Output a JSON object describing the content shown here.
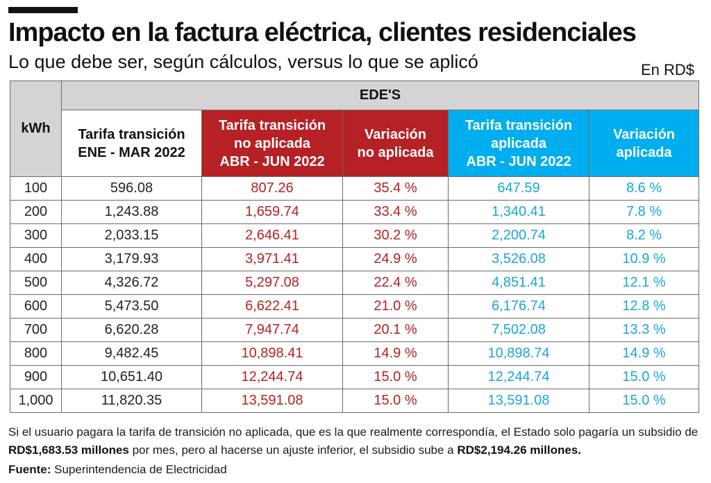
{
  "title": "Impacto en la factura eléctrica, clientes residenciales",
  "subtitle": "Lo que debe ser, según cálculos, versus lo que se aplicó",
  "currency": "En RD$",
  "table": {
    "kwh_header": "kWh",
    "group_header": "EDE'S",
    "columns": [
      [
        "Tarifa transición",
        "ENE - MAR 2022"
      ],
      [
        "Tarifa transición",
        "no aplicada",
        "ABR - JUN 2022"
      ],
      [
        "Variación",
        "no aplicada"
      ],
      [
        "Tarifa transición",
        "aplicada",
        "ABR - JUN 2022"
      ],
      [
        "Variación",
        "aplicada"
      ]
    ],
    "rows": [
      [
        "100",
        "596.08",
        "807.26",
        "35.4 %",
        "647.59",
        "8.6 %"
      ],
      [
        "200",
        "1,243.88",
        "1,659.74",
        "33.4 %",
        "1,340.41",
        "7.8 %"
      ],
      [
        "300",
        "2,033.15",
        "2,646.41",
        "30.2 %",
        "2,200.74",
        "8.2 %"
      ],
      [
        "400",
        "3,179.93",
        "3,971.41",
        "24.9 %",
        "3,526.08",
        "10.9 %"
      ],
      [
        "500",
        "4,326.72",
        "5,297.08",
        "22.4 %",
        "4,851.41",
        "12.1 %"
      ],
      [
        "600",
        "5,473.50",
        "6,622.41",
        "21.0 %",
        "6,176.74",
        "12.8 %"
      ],
      [
        "700",
        "6,620.28",
        "7,947.74",
        "20.1 %",
        "7,502.08",
        "13.3 %"
      ],
      [
        "800",
        "9,482.45",
        "10,898.41",
        "14.9 %",
        "10,898.74",
        "14.9 %"
      ],
      [
        "900",
        "10,651.40",
        "12,244.74",
        "15.0 %",
        "12,244.74",
        "15.0 %"
      ],
      [
        "1,000",
        "11,820.35",
        "13,591.08",
        "15.0 %",
        "13,591.08",
        "15.0 %"
      ]
    ]
  },
  "note": {
    "text1": "Si el usuario pagara la tarifa de transición no aplicada, que es la que realmente correspondía, el Estado solo pagaría un subsidio de ",
    "amount1": "RD$1,683.53 millones",
    "text2": " por mes, pero al hacerse un ajuste inferior, el subsidio sube a ",
    "amount2": "RD$2,194.26 millones."
  },
  "source": {
    "label": "Fuente:",
    "text": " Superintendencia de Electricidad"
  },
  "colors": {
    "not_applied": "#b52125",
    "applied": "#00aeef",
    "header_gray": "#d4d4d4"
  }
}
